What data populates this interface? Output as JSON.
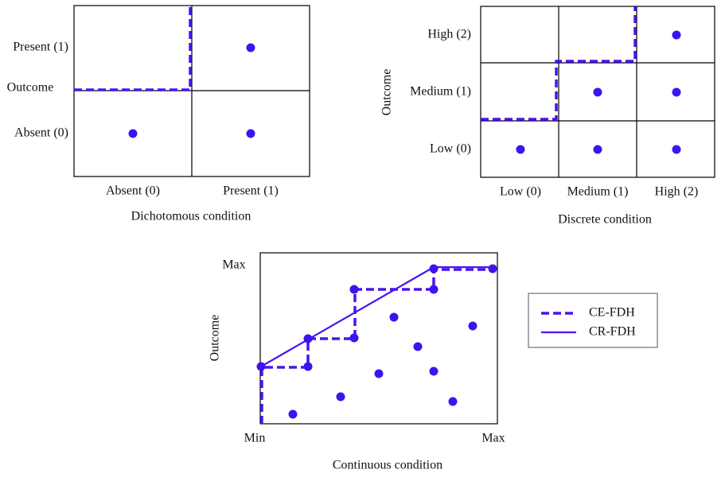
{
  "panels": [
    {
      "title": "Dichotomous condition",
      "y_axis_label": "Outcome",
      "y_labels": [
        "Present (1)",
        "Absent (0)"
      ],
      "x_labels": [
        "Absent (0)",
        "Present (1)"
      ]
    },
    {
      "title": "Discrete condition",
      "y_axis_label": "Outcome",
      "y_labels": [
        "High (2)",
        "Medium (1)",
        "Low (0)"
      ],
      "x_labels": [
        "Low (0)",
        "Medium (1)",
        "High (2)"
      ]
    },
    {
      "title": "Continuous condition",
      "y_axis_label": "Outcome",
      "y_labels": [
        "Max"
      ],
      "x_labels": [
        "Min",
        "Max"
      ]
    }
  ],
  "legend": {
    "items": [
      "CE-FDH",
      "CR-FDH"
    ]
  }
}
